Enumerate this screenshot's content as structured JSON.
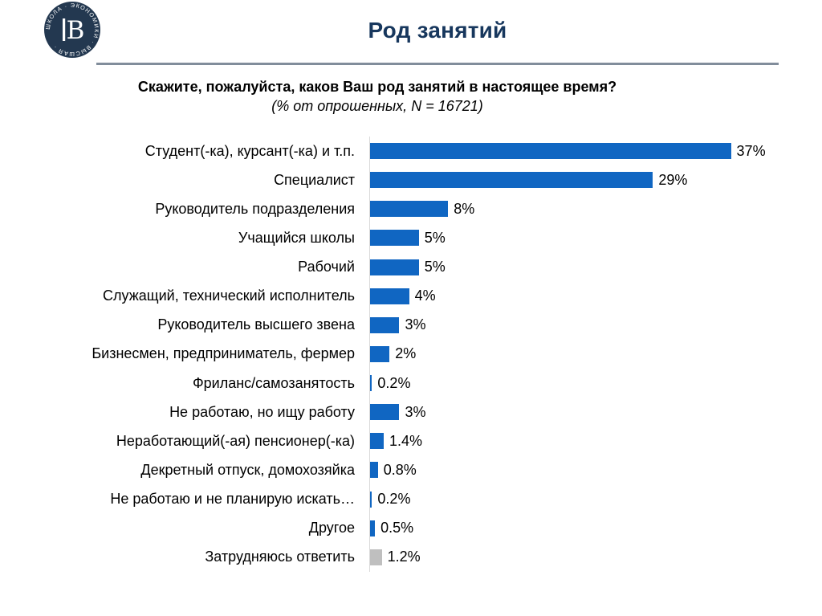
{
  "slide": {
    "title": "Род занятий",
    "question": "Скажите, пожалуйста, каков Ваш род занятий в настоящее время?",
    "subtitle": "(% от опрошенных, N = 16721)"
  },
  "logo": {
    "ring_text": "ШКОЛА · ЭКОНОМИКИ · ВЫСШАЯ ·",
    "emblem": "В",
    "circle_color": "#233850"
  },
  "colors": {
    "title": "#17375d",
    "divider": "#818d9b",
    "axis": "#d9d9d9",
    "bar_default": "#1066c2",
    "bar_muted": "#bfbfbf"
  },
  "chart_data": {
    "type": "bar",
    "orientation": "horizontal",
    "title": "Скажите, пожалуйста, каков Ваш род занятий в настоящее время?",
    "subtitle": "(% от опрошенных, N = 16721)",
    "xlabel": "",
    "ylabel": "",
    "xlim": [
      0,
      40
    ],
    "grid": false,
    "legend": "none",
    "categories": [
      "Студент(-ка), курсант(-ка) и т.п.",
      "Специалист",
      "Руководитель подразделения",
      "Учащийся школы",
      "Рабочий",
      "Служащий, технический исполнитель",
      "Руководитель высшего звена",
      "Бизнесмен, предприниматель, фермер",
      "Фриланс/самозанятость",
      "Не работаю, но ищу работу",
      "Неработающий(-ая) пенсионер(-ка)",
      "Декретный отпуск, домохозяйка",
      "Не работаю и не планирую искать…",
      "Другое",
      "Затрудняюсь ответить"
    ],
    "values": [
      37,
      29,
      8,
      5,
      5,
      4,
      3,
      2,
      0.2,
      3,
      1.4,
      0.8,
      0.2,
      0.5,
      1.2
    ],
    "data_labels": [
      "37%",
      "29%",
      "8%",
      "5%",
      "5%",
      "4%",
      "3%",
      "2%",
      "0.2%",
      "3%",
      "1.4%",
      "0.8%",
      "0.2%",
      "0.5%",
      "1.2%"
    ],
    "bar_colors": [
      "#1066c2",
      "#1066c2",
      "#1066c2",
      "#1066c2",
      "#1066c2",
      "#1066c2",
      "#1066c2",
      "#1066c2",
      "#1066c2",
      "#1066c2",
      "#1066c2",
      "#1066c2",
      "#1066c2",
      "#1066c2",
      "#bfbfbf"
    ]
  }
}
